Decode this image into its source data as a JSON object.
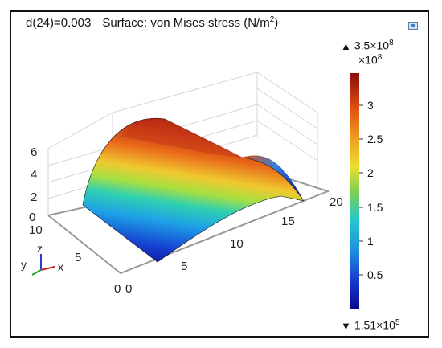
{
  "header": {
    "parameter": "d(24)=0.003",
    "title": "Surface: von Mises stress (N/m",
    "title_sup": "2",
    "title_tail": ")"
  },
  "colorbar": {
    "max_label": "3.5×10",
    "max_exp": "8",
    "scale_label": "×10",
    "scale_exp": "8",
    "min_label": "1.51×10",
    "min_exp": "5",
    "ticks": [
      "3",
      "2.5",
      "2",
      "1.5",
      "1",
      "0.5"
    ],
    "tick_values": [
      3,
      2.5,
      2,
      1.5,
      1,
      0.5
    ],
    "range": [
      0.00151,
      3.5
    ]
  },
  "axes": {
    "z_ticks": [
      "0",
      "2",
      "4",
      "6"
    ],
    "y_ticks": [
      "0",
      "5",
      "10"
    ],
    "x_ticks": [
      "0",
      "5",
      "10",
      "15",
      "20"
    ],
    "triad": {
      "x": "x",
      "y": "y",
      "z": "z"
    }
  },
  "colors": {
    "axis_x": "#d32020",
    "axis_y": "#2aa02a",
    "axis_z": "#2040d0",
    "frame": "#111111"
  },
  "icons": {
    "corner": "window-icon"
  }
}
